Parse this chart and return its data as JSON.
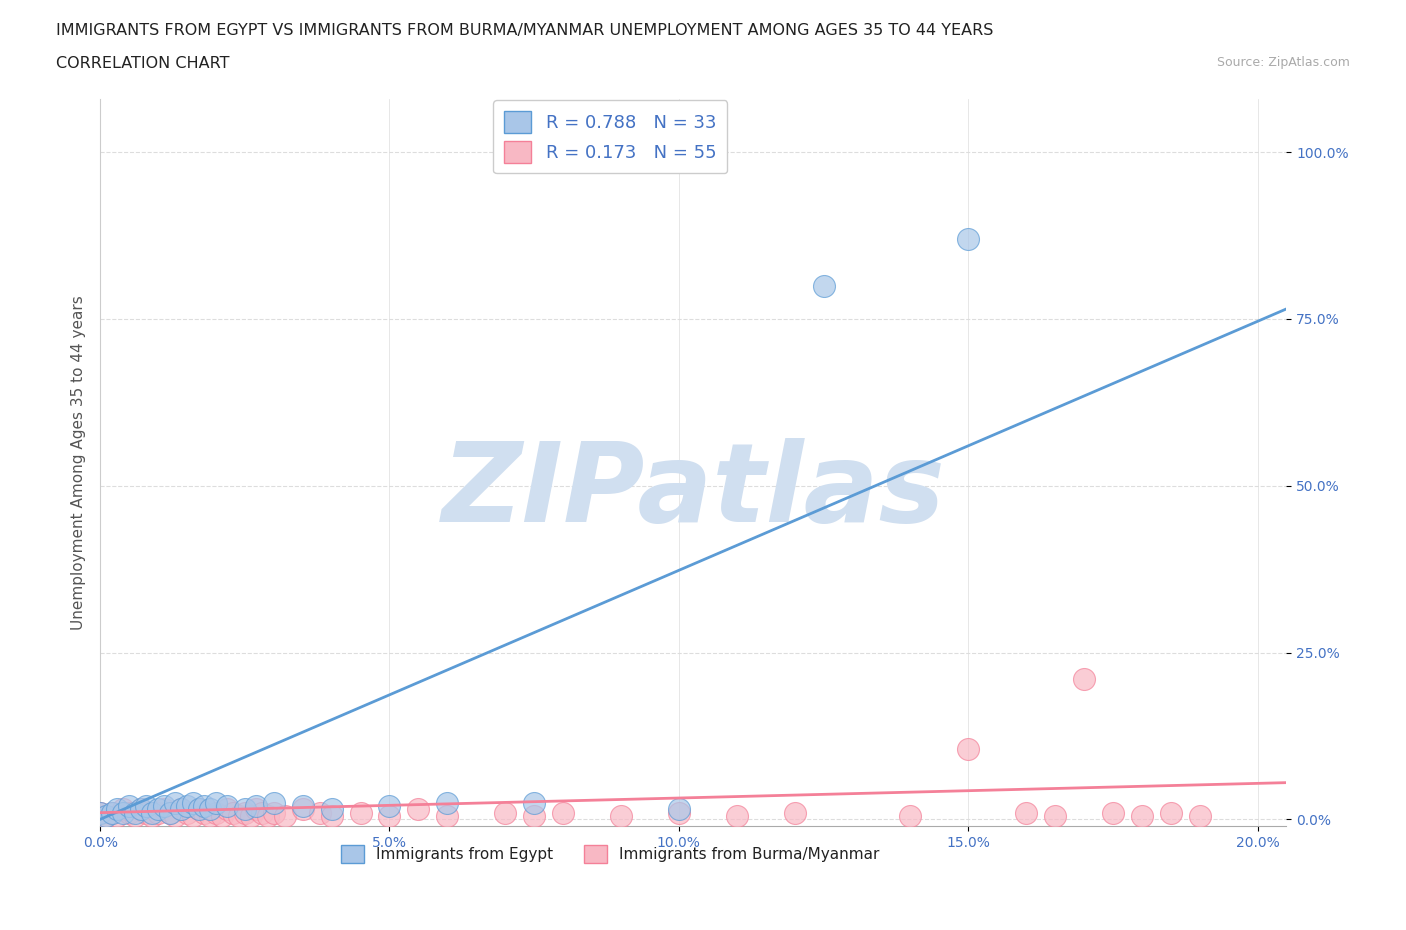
{
  "title_line1": "IMMIGRANTS FROM EGYPT VS IMMIGRANTS FROM BURMA/MYANMAR UNEMPLOYMENT AMONG AGES 35 TO 44 YEARS",
  "title_line2": "CORRELATION CHART",
  "source_text": "Source: ZipAtlas.com",
  "ylabel": "Unemployment Among Ages 35 to 44 years",
  "xlim": [
    0.0,
    0.205
  ],
  "ylim": [
    -0.01,
    1.08
  ],
  "xtick_labels": [
    "0.0%",
    "5.0%",
    "10.0%",
    "15.0%",
    "20.0%"
  ],
  "xtick_vals": [
    0.0,
    0.05,
    0.1,
    0.15,
    0.2
  ],
  "ytick_labels": [
    "0.0%",
    "25.0%",
    "50.0%",
    "75.0%",
    "100.0%"
  ],
  "ytick_vals": [
    0.0,
    0.25,
    0.5,
    0.75,
    1.0
  ],
  "egypt_color": "#5b9bd5",
  "egypt_fill": "#a9c6e8",
  "burma_color": "#f48098",
  "burma_fill": "#f8b8c4",
  "egypt_R": 0.788,
  "egypt_N": 33,
  "burma_R": 0.173,
  "burma_N": 55,
  "egypt_scatter_x": [
    0.0,
    0.001,
    0.002,
    0.003,
    0.004,
    0.005,
    0.006,
    0.007,
    0.008,
    0.009,
    0.01,
    0.011,
    0.012,
    0.013,
    0.014,
    0.015,
    0.016,
    0.017,
    0.018,
    0.019,
    0.02,
    0.022,
    0.025,
    0.027,
    0.03,
    0.035,
    0.04,
    0.05,
    0.06,
    0.075,
    0.1,
    0.125,
    0.15
  ],
  "egypt_scatter_y": [
    0.01,
    0.005,
    0.01,
    0.015,
    0.01,
    0.02,
    0.01,
    0.015,
    0.02,
    0.01,
    0.015,
    0.02,
    0.01,
    0.025,
    0.015,
    0.02,
    0.025,
    0.015,
    0.02,
    0.015,
    0.025,
    0.02,
    0.015,
    0.02,
    0.025,
    0.02,
    0.015,
    0.02,
    0.025,
    0.025,
    0.015,
    0.8,
    0.87
  ],
  "burma_scatter_x": [
    0.0,
    0.001,
    0.002,
    0.003,
    0.004,
    0.005,
    0.006,
    0.007,
    0.008,
    0.009,
    0.01,
    0.011,
    0.012,
    0.013,
    0.014,
    0.015,
    0.016,
    0.017,
    0.018,
    0.019,
    0.02,
    0.021,
    0.022,
    0.023,
    0.024,
    0.025,
    0.026,
    0.027,
    0.028,
    0.029,
    0.03,
    0.032,
    0.035,
    0.038,
    0.04,
    0.045,
    0.05,
    0.055,
    0.06,
    0.07,
    0.075,
    0.08,
    0.09,
    0.1,
    0.11,
    0.12,
    0.14,
    0.15,
    0.16,
    0.165,
    0.17,
    0.175,
    0.18,
    0.185,
    0.19
  ],
  "burma_scatter_y": [
    0.01,
    0.005,
    0.01,
    0.005,
    0.015,
    0.01,
    0.005,
    0.015,
    0.01,
    0.005,
    0.01,
    0.015,
    0.01,
    0.005,
    0.015,
    0.01,
    0.005,
    0.015,
    0.01,
    0.005,
    0.01,
    0.005,
    0.015,
    0.01,
    0.005,
    0.01,
    0.005,
    0.015,
    0.01,
    0.005,
    0.01,
    0.005,
    0.015,
    0.01,
    0.005,
    0.01,
    0.005,
    0.015,
    0.005,
    0.01,
    0.005,
    0.01,
    0.005,
    0.01,
    0.005,
    0.01,
    0.005,
    0.105,
    0.01,
    0.005,
    0.21,
    0.01,
    0.005,
    0.01,
    0.005
  ],
  "egypt_trend_x": [
    0.0,
    0.205
  ],
  "egypt_trend_y": [
    0.0,
    0.765
  ],
  "burma_trend_x": [
    0.0,
    0.205
  ],
  "burma_trend_y": [
    0.01,
    0.055
  ],
  "watermark_text": "ZIPatlas",
  "watermark_color": "#d0dff0",
  "background_color": "#ffffff",
  "grid_color": "#dddddd",
  "title_fontsize": 11.5,
  "axis_label_fontsize": 11,
  "tick_fontsize": 10,
  "legend_fontsize": 13
}
